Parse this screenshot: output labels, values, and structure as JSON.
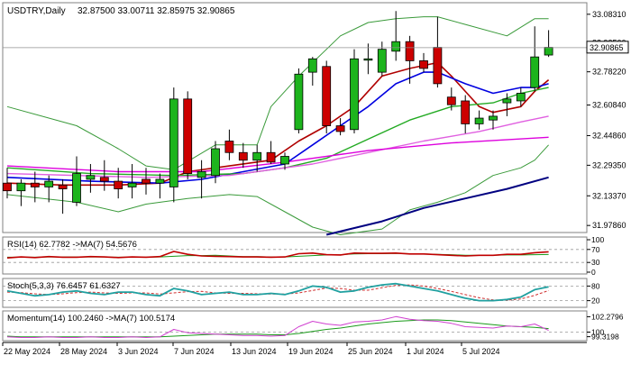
{
  "header": {
    "symbol": "USDTRY,Daily",
    "ohlc": "32.87500 33.00711 32.85975 32.90865"
  },
  "colors": {
    "bull": "#1db41d",
    "bear": "#cc0000",
    "ma_fast": "#b00000",
    "ma_mid": "#0000e0",
    "ma_green": "#22aa22",
    "ma_pink": "#e060e0",
    "ma_magenta": "#dd00dd",
    "ma_navy": "#000080",
    "band": "#3a9a3a",
    "grid": "#c8c8c8"
  },
  "main": {
    "y_ticks": [
      "33.08310",
      "32.93500",
      "32.78220",
      "32.60840",
      "32.44860",
      "32.29350",
      "32.13370",
      "31.97860"
    ],
    "current_price": "32.90865",
    "ylim": [
      31.97,
      33.12
    ]
  },
  "x_labels": [
    "22 May 2024",
    "28 May 2024",
    "3 Jun 2024",
    "7 Jun 2024",
    "13 Jun 2024",
    "19 Jun 2024",
    "25 Jun 2024",
    "1 Jul 2024",
    "5 Jul 2024"
  ],
  "chart_data": {
    "type": "candlestick",
    "candles": [
      {
        "o": 32.2,
        "h": 32.28,
        "l": 32.12,
        "c": 32.16
      },
      {
        "o": 32.16,
        "h": 32.22,
        "l": 32.08,
        "c": 32.2
      },
      {
        "o": 32.2,
        "h": 32.26,
        "l": 32.1,
        "c": 32.18
      },
      {
        "o": 32.18,
        "h": 32.24,
        "l": 32.1,
        "c": 32.21
      },
      {
        "o": 32.19,
        "h": 32.22,
        "l": 32.04,
        "c": 32.17
      },
      {
        "o": 32.1,
        "h": 32.34,
        "l": 32.08,
        "c": 32.25
      },
      {
        "o": 32.22,
        "h": 32.3,
        "l": 32.15,
        "c": 32.24
      },
      {
        "o": 32.23,
        "h": 32.32,
        "l": 32.16,
        "c": 32.21
      },
      {
        "o": 32.21,
        "h": 32.28,
        "l": 32.12,
        "c": 32.17
      },
      {
        "o": 32.18,
        "h": 32.3,
        "l": 32.12,
        "c": 32.2
      },
      {
        "o": 32.22,
        "h": 32.28,
        "l": 32.14,
        "c": 32.2
      },
      {
        "o": 32.2,
        "h": 32.25,
        "l": 32.12,
        "c": 32.22
      },
      {
        "o": 32.18,
        "h": 32.7,
        "l": 32.1,
        "c": 32.64
      },
      {
        "o": 32.64,
        "h": 32.68,
        "l": 32.22,
        "c": 32.25
      },
      {
        "o": 32.23,
        "h": 32.32,
        "l": 32.12,
        "c": 32.26
      },
      {
        "o": 32.24,
        "h": 32.42,
        "l": 32.2,
        "c": 32.38
      },
      {
        "o": 32.42,
        "h": 32.48,
        "l": 32.32,
        "c": 32.36
      },
      {
        "o": 32.36,
        "h": 32.41,
        "l": 32.28,
        "c": 32.32
      },
      {
        "o": 32.32,
        "h": 32.4,
        "l": 32.26,
        "c": 32.36
      },
      {
        "o": 32.36,
        "h": 32.42,
        "l": 32.3,
        "c": 32.31
      },
      {
        "o": 32.3,
        "h": 32.36,
        "l": 32.27,
        "c": 32.34
      },
      {
        "o": 32.48,
        "h": 32.8,
        "l": 32.46,
        "c": 32.77
      },
      {
        "o": 32.78,
        "h": 32.86,
        "l": 32.71,
        "c": 32.85
      },
      {
        "o": 32.81,
        "h": 32.84,
        "l": 32.46,
        "c": 32.5
      },
      {
        "o": 32.5,
        "h": 32.54,
        "l": 32.45,
        "c": 32.47
      },
      {
        "o": 32.48,
        "h": 32.9,
        "l": 32.46,
        "c": 32.85
      },
      {
        "o": 32.85,
        "h": 32.93,
        "l": 32.77,
        "c": 32.85
      },
      {
        "o": 32.78,
        "h": 32.94,
        "l": 32.76,
        "c": 32.9
      },
      {
        "o": 32.89,
        "h": 33.1,
        "l": 32.84,
        "c": 32.94
      },
      {
        "o": 32.94,
        "h": 32.97,
        "l": 32.72,
        "c": 32.84
      },
      {
        "o": 32.84,
        "h": 32.88,
        "l": 32.78,
        "c": 32.8
      },
      {
        "o": 32.91,
        "h": 33.07,
        "l": 32.7,
        "c": 32.72
      },
      {
        "o": 32.65,
        "h": 32.7,
        "l": 32.58,
        "c": 32.61
      },
      {
        "o": 32.63,
        "h": 32.66,
        "l": 32.46,
        "c": 32.51
      },
      {
        "o": 32.51,
        "h": 32.58,
        "l": 32.48,
        "c": 32.54
      },
      {
        "o": 32.53,
        "h": 32.58,
        "l": 32.48,
        "c": 32.55
      },
      {
        "o": 32.62,
        "h": 32.67,
        "l": 32.55,
        "c": 32.64
      },
      {
        "o": 32.63,
        "h": 32.7,
        "l": 32.6,
        "c": 32.67
      },
      {
        "o": 32.7,
        "h": 33.02,
        "l": 32.68,
        "c": 32.86
      },
      {
        "o": 32.87,
        "h": 33.0,
        "l": 32.86,
        "c": 32.91
      }
    ],
    "lines": [
      {
        "key": "ma_fast",
        "width": 1.6,
        "points": [
          [
            0,
            32.2
          ],
          [
            4,
            32.19
          ],
          [
            8,
            32.19
          ],
          [
            11,
            32.2
          ],
          [
            13,
            32.26
          ],
          [
            16,
            32.29
          ],
          [
            19,
            32.32
          ],
          [
            21,
            32.42
          ],
          [
            23,
            32.5
          ],
          [
            25,
            32.6
          ],
          [
            27,
            32.76
          ],
          [
            29,
            32.8
          ],
          [
            31,
            32.83
          ],
          [
            32,
            32.76
          ],
          [
            33,
            32.68
          ],
          [
            34,
            32.6
          ],
          [
            35,
            32.57
          ],
          [
            37,
            32.6
          ],
          [
            38,
            32.68
          ],
          [
            39,
            32.74
          ]
        ]
      },
      {
        "key": "ma_mid",
        "width": 1.6,
        "points": [
          [
            0,
            32.23
          ],
          [
            6,
            32.21
          ],
          [
            11,
            32.2
          ],
          [
            14,
            32.22
          ],
          [
            17,
            32.26
          ],
          [
            20,
            32.3
          ],
          [
            22,
            32.4
          ],
          [
            24,
            32.5
          ],
          [
            26,
            32.6
          ],
          [
            28,
            32.72
          ],
          [
            30,
            32.78
          ],
          [
            31,
            32.78
          ],
          [
            33,
            32.72
          ],
          [
            35,
            32.67
          ],
          [
            37,
            32.7
          ],
          [
            38,
            32.7
          ],
          [
            39,
            32.72
          ]
        ]
      },
      {
        "key": "ma_green",
        "width": 1.4,
        "points": [
          [
            0,
            32.28
          ],
          [
            6,
            32.25
          ],
          [
            12,
            32.24
          ],
          [
            17,
            32.25
          ],
          [
            20,
            32.28
          ],
          [
            23,
            32.33
          ],
          [
            26,
            32.43
          ],
          [
            29,
            32.53
          ],
          [
            32,
            32.6
          ],
          [
            35,
            32.62
          ],
          [
            37,
            32.67
          ],
          [
            39,
            32.7
          ]
        ]
      },
      {
        "key": "ma_pink",
        "width": 1.4,
        "points": [
          [
            0,
            32.25
          ],
          [
            10,
            32.23
          ],
          [
            16,
            32.24
          ],
          [
            22,
            32.3
          ],
          [
            26,
            32.36
          ],
          [
            30,
            32.42
          ],
          [
            34,
            32.47
          ],
          [
            37,
            32.52
          ],
          [
            39,
            32.55
          ]
        ]
      },
      {
        "key": "ma_magenta",
        "width": 1.4,
        "points": [
          [
            0,
            32.29
          ],
          [
            8,
            32.26
          ],
          [
            14,
            32.26
          ],
          [
            20,
            32.31
          ],
          [
            26,
            32.37
          ],
          [
            32,
            32.41
          ],
          [
            39,
            32.44
          ]
        ]
      },
      {
        "key": "ma_navy",
        "width": 2,
        "points": [
          [
            23,
            31.93
          ],
          [
            27,
            32.0
          ],
          [
            30,
            32.07
          ],
          [
            33,
            32.12
          ],
          [
            36,
            32.17
          ],
          [
            39,
            32.23
          ]
        ]
      },
      {
        "key": "band",
        "width": 1,
        "points": [
          [
            0,
            32.6
          ],
          [
            5,
            32.5
          ],
          [
            8,
            32.38
          ],
          [
            10,
            32.29
          ],
          [
            12,
            32.27
          ],
          [
            15,
            32.4
          ],
          [
            18,
            32.4
          ],
          [
            19,
            32.6
          ],
          [
            21,
            32.76
          ],
          [
            24,
            32.97
          ],
          [
            26,
            33.04
          ],
          [
            28,
            33.06
          ],
          [
            30,
            33.07
          ],
          [
            31,
            33.07
          ],
          [
            33,
            33.03
          ],
          [
            36,
            32.97
          ],
          [
            38,
            33.06
          ],
          [
            39,
            33.06
          ]
        ]
      },
      {
        "key": "band",
        "width": 1,
        "points": [
          [
            0,
            32.14
          ],
          [
            5,
            32.1
          ],
          [
            8,
            32.05
          ],
          [
            10,
            32.09
          ],
          [
            13,
            32.12
          ],
          [
            16,
            32.14
          ],
          [
            18,
            32.13
          ],
          [
            20,
            32.05
          ],
          [
            22,
            31.97
          ],
          [
            24,
            31.93
          ],
          [
            27,
            31.96
          ],
          [
            29,
            32.06
          ],
          [
            31,
            32.1
          ],
          [
            33,
            32.15
          ],
          [
            35,
            32.24
          ],
          [
            37,
            32.28
          ],
          [
            38,
            32.32
          ],
          [
            39,
            32.4
          ]
        ]
      }
    ]
  },
  "rsi": {
    "label": "RSI(14) 62.7782 ->MA(7) 54.5676",
    "levels": [
      "100",
      "70",
      "30",
      "0"
    ],
    "ylim": [
      0,
      100
    ],
    "rsi_values": [
      44,
      47,
      45,
      48,
      46,
      46,
      48,
      47,
      45,
      47,
      46,
      48,
      64,
      55,
      50,
      49,
      48,
      47,
      47,
      46,
      47,
      57,
      59,
      54,
      53,
      59,
      58,
      58,
      59,
      56,
      56,
      54,
      52,
      50,
      52,
      52,
      55,
      55,
      60,
      62.78
    ],
    "ma_values": [
      46,
      46,
      46,
      47,
      47,
      47,
      47,
      47,
      46,
      46,
      46,
      47,
      49,
      51,
      51,
      52,
      50,
      48,
      48,
      47,
      47,
      49,
      51,
      53,
      54,
      56,
      57,
      57,
      58,
      57,
      56,
      55,
      54,
      52,
      52,
      52,
      53,
      53,
      54,
      54.57
    ]
  },
  "stoch": {
    "label": "Stoch(5,3,3) 76.6457 61.6327",
    "levels": [
      "80",
      "20"
    ],
    "ylim": [
      0,
      100
    ],
    "k_values": [
      60,
      50,
      40,
      45,
      55,
      60,
      50,
      45,
      55,
      55,
      45,
      40,
      70,
      60,
      45,
      50,
      55,
      45,
      45,
      50,
      45,
      60,
      80,
      75,
      55,
      60,
      75,
      85,
      90,
      80,
      70,
      60,
      45,
      30,
      20,
      20,
      25,
      35,
      65,
      76.65
    ],
    "d_values": [
      55,
      53,
      48,
      45,
      48,
      53,
      55,
      52,
      50,
      52,
      52,
      47,
      52,
      57,
      58,
      52,
      50,
      50,
      48,
      47,
      47,
      52,
      62,
      72,
      70,
      63,
      63,
      73,
      83,
      85,
      80,
      70,
      58,
      45,
      32,
      23,
      22,
      27,
      42,
      61.63
    ]
  },
  "momentum": {
    "label": "Momentum(14) 100.2460  ->MA(7) 100.5174",
    "top_tick": "102.2796",
    "mid_tick": "100",
    "low_tick": "99.3198",
    "ylim": [
      99.0,
      102.6
    ],
    "mom_values": [
      99.3,
      99.2,
      99.2,
      99.3,
      99.2,
      99.2,
      99.3,
      99.2,
      99.2,
      99.3,
      99.2,
      99.3,
      100.4,
      99.9,
      99.8,
      99.7,
      99.6,
      99.5,
      99.5,
      99.4,
      99.5,
      100.8,
      101.6,
      101.2,
      101.0,
      101.5,
      101.6,
      101.8,
      102.3,
      101.9,
      101.7,
      101.6,
      101.3,
      100.8,
      100.7,
      100.6,
      100.9,
      100.8,
      101.2,
      100.25
    ],
    "ma_values": [
      99.4,
      99.3,
      99.3,
      99.3,
      99.3,
      99.3,
      99.3,
      99.3,
      99.3,
      99.3,
      99.3,
      99.3,
      99.4,
      99.5,
      99.6,
      99.7,
      99.7,
      99.7,
      99.7,
      99.6,
      99.6,
      99.8,
      100.1,
      100.4,
      100.6,
      100.9,
      101.2,
      101.4,
      101.6,
      101.7,
      101.8,
      101.8,
      101.7,
      101.5,
      101.3,
      101.1,
      100.9,
      100.8,
      100.7,
      100.52
    ]
  }
}
